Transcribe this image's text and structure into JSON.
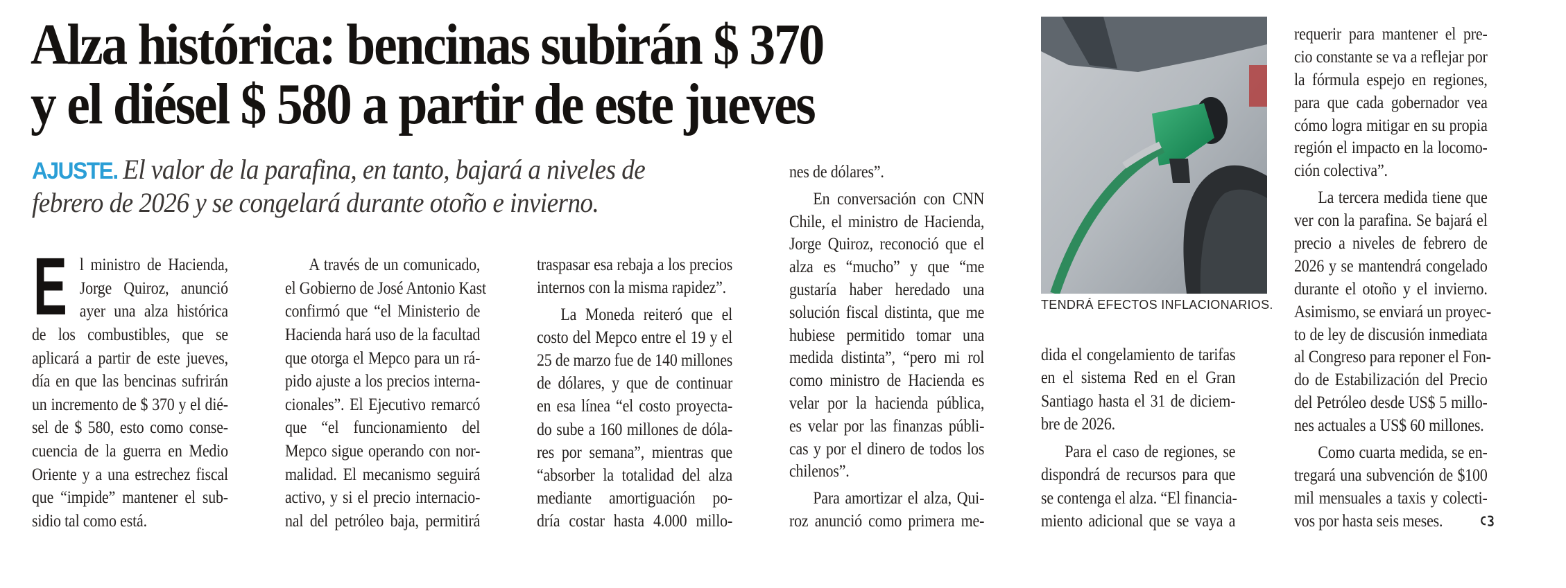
{
  "headline": {
    "line1": "Alza histórica: bencinas subirán $ 370",
    "line2": "y el diésel $ 580 a partir de este jueves"
  },
  "subhead": {
    "kicker": "AJUSTE.",
    "line1": "El valor de la parafina, en tanto, bajará a niveles de",
    "line2": "febrero de 2026 y se congelará durante otoño e invierno.",
    "kicker_color": "#2a9ed6"
  },
  "dropcap": "E",
  "photo": {
    "caption": "TENDRÁ EFECTOS INFLACIONARIOS."
  },
  "columns": [
    {
      "paragraphs": [
        {
          "indent": false,
          "ends": true,
          "lines": [
            "l ministro de Hacienda,",
            "Jorge Quiroz, anunció",
            "ayer una alza histórica",
            "de los combustibles, que se",
            "aplicará a partir de este jueves,",
            "día en que las bencinas sufrirán",
            "un incremento de $ 370 y el dié-",
            "sel de $ 580, esto como conse-",
            "cuencia de la guerra en Medio",
            "Oriente y a una estrechez fiscal",
            "que “impide” mantener el sub-",
            "sidio tal como está."
          ]
        }
      ]
    },
    {
      "paragraphs": [
        {
          "indent": true,
          "ends": false,
          "lines": [
            "A través de un comunicado,",
            "el Gobierno de José Antonio Kast",
            "confirmó que “el Ministerio de",
            "Hacienda hará uso de la facultad",
            "que otorga el Mepco para un rá-",
            "pido ajuste a los precios interna-",
            "cionales”. El Ejecutivo remarcó",
            "que “el funcionamiento del",
            "Mepco sigue operando con nor-",
            "malidad. El mecanismo seguirá",
            "activo, y si el precio internacio-",
            "nal del petróleo baja, permitirá"
          ]
        }
      ]
    },
    {
      "paragraphs": [
        {
          "indent": false,
          "ends": true,
          "lines": [
            "traspasar esa rebaja a los precios",
            "internos con la misma rapidez”."
          ]
        },
        {
          "indent": true,
          "ends": false,
          "lines": [
            "La Moneda reiteró que el",
            "costo del Mepco entre el 19 y el",
            "25 de marzo fue de 140 millones",
            "de dólares, y que de continuar",
            "en esa línea “el costo proyecta-",
            "do sube a 160 millones de dóla-",
            "res por semana”, mientras que",
            "“absorber la totalidad del alza",
            "mediante amortiguación po-",
            "dría costar hasta 4.000 millo-"
          ]
        }
      ]
    },
    {
      "paragraphs": [
        {
          "indent": false,
          "ends": true,
          "lines": [
            "nes de dólares”."
          ]
        },
        {
          "indent": true,
          "ends": true,
          "lines": [
            "En conversación con CNN",
            "Chile, el ministro de Hacienda,",
            "Jorge Quiroz, reconoció que el",
            "alza es “mucho” y que “me",
            "gustaría haber heredado una",
            "solución fiscal distinta, que me",
            "hubiese permitido tomar una",
            "medida distinta”, “pero mi rol",
            "como ministro de Hacienda es",
            "velar por la hacienda pública,",
            "es velar por las finanzas públi-",
            "cas y por el dinero de todos los",
            "chilenos”."
          ]
        },
        {
          "indent": true,
          "ends": false,
          "lines": [
            "Para amortizar el alza, Qui-",
            "roz anunció como primera me-"
          ]
        }
      ]
    },
    {
      "paragraphs": [
        {
          "indent": false,
          "ends": true,
          "lines": [
            "dida el congelamiento de tarifas",
            "en el sistema Red en el Gran",
            "Santiago hasta el 31 de diciem-",
            "bre de 2026."
          ]
        },
        {
          "indent": true,
          "ends": false,
          "lines": [
            "Para el caso de regiones, se",
            "dispondrá de recursos para que",
            "se contenga el alza. “El financia-",
            "miento adicional que se vaya a"
          ]
        }
      ]
    },
    {
      "paragraphs": [
        {
          "indent": false,
          "ends": true,
          "lines": [
            "requerir para mantener el pre-",
            "cio constante se va a reflejar por",
            "la fórmula espejo en regiones,",
            "para que cada gobernador vea",
            "cómo logra mitigar en su propia",
            "región el impacto en la locomo-",
            "ción colectiva”."
          ]
        },
        {
          "indent": true,
          "ends": true,
          "lines": [
            "La tercera medida tiene que",
            "ver con la parafina. Se bajará el",
            "precio a niveles de febrero de",
            "2026 y se mantendrá congelado",
            "durante el otoño y el invierno.",
            "Asimismo, se enviará un proyec-",
            "to de ley de discusión inmediata",
            "al Congreso para reponer el Fon-",
            "do de Estabilización del Precio",
            "del Petróleo desde US$ 5 millo-",
            "nes actuales a US$ 60 millones."
          ]
        },
        {
          "indent": true,
          "ends": true,
          "lines": [
            "Como cuarta medida, se en-",
            "tregará una subvención de $100",
            "mil mensuales a taxis y colecti-",
            "vos por hasta seis meses."
          ]
        }
      ]
    }
  ]
}
